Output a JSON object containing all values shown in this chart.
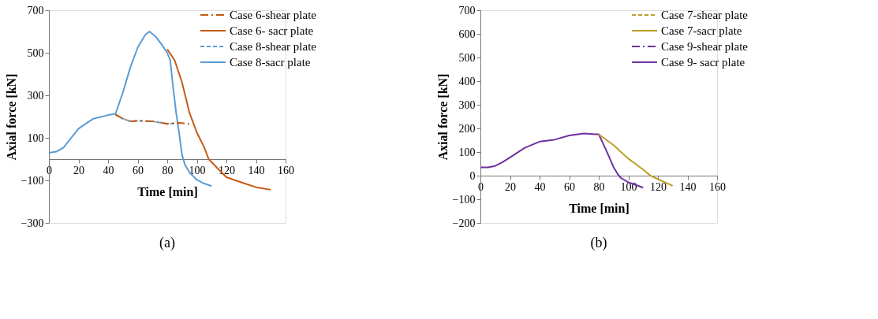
{
  "chart_data": [
    {
      "type": "line",
      "xlabel": "Time [min]",
      "ylabel": "Axial force [kN]",
      "annotations": [
        "(a)"
      ],
      "xlim": [
        0,
        160
      ],
      "xticks": [
        0,
        20,
        40,
        60,
        80,
        100,
        120,
        140,
        160
      ],
      "ylim": [
        -300,
        700
      ],
      "yticks": [
        -300,
        -100,
        100,
        300,
        500,
        700
      ],
      "legend": "top right",
      "grid": false,
      "marker": "none",
      "series": [
        {
          "name": "Case 6-shear plate",
          "color": "#c55a11",
          "line_style": "dashdot",
          "x": [
            45,
            50,
            55,
            60,
            70,
            80,
            88,
            92,
            96
          ],
          "values": [
            210,
            190,
            178,
            180,
            178,
            166,
            170,
            168,
            165
          ]
        },
        {
          "name": "Case 6- sacr plate",
          "color": "#c55a11",
          "line_style": "solid",
          "x": [
            80,
            85,
            90,
            95,
            100,
            105,
            108,
            115,
            120,
            130,
            140,
            150
          ],
          "values": [
            516,
            465,
            360,
            219,
            125,
            55,
            0,
            -50,
            -85,
            -109,
            -132,
            -144
          ]
        },
        {
          "name": "Case 8-shear plate",
          "color": "#5b9bd5",
          "line_style": "dashed",
          "x": [
            45,
            50,
            55,
            60,
            70,
            80,
            88
          ],
          "values": [
            210,
            190,
            178,
            180,
            178,
            166,
            170
          ]
        },
        {
          "name": "Case 8-sacr plate",
          "color": "#5b9bd5",
          "line_style": "solid",
          "x": [
            0,
            5,
            10,
            20,
            30,
            40,
            45,
            50,
            55,
            60,
            65,
            68,
            72,
            76,
            80,
            82,
            84,
            86,
            88,
            90,
            92,
            95,
            100,
            105,
            110
          ],
          "values": [
            30,
            35,
            55,
            143,
            190,
            207,
            213,
            313,
            430,
            524,
            583,
            600,
            577,
            541,
            500,
            465,
            336,
            219,
            125,
            20,
            -27,
            -62,
            -97,
            -115,
            -127
          ]
        }
      ]
    },
    {
      "type": "line",
      "xlabel": "Time [min]",
      "ylabel": "Axial force [kN]",
      "annotations": [
        "(b)"
      ],
      "xlim": [
        0,
        160
      ],
      "xticks": [
        0,
        20,
        40,
        60,
        80,
        100,
        120,
        140,
        160
      ],
      "ylim": [
        -200,
        700
      ],
      "yticks": [
        -200,
        -100,
        0,
        100,
        200,
        300,
        400,
        500,
        600,
        700
      ],
      "legend": "top right",
      "grid": false,
      "marker": "none",
      "series": [
        {
          "name": "Case 7-shear plate",
          "color": "#bf9f2a",
          "line_style": "dashed"
        },
        {
          "name": "Case 7-sacr plate",
          "color": "#bf9f2a",
          "line_style": "solid",
          "x": [
            80,
            90,
            100,
            110,
            115,
            120,
            130
          ],
          "values": [
            175,
            129,
            72,
            26,
            0,
            -15,
            -43
          ]
        },
        {
          "name": "Case 9-shear plate",
          "color": "#7030a0",
          "line_style": "dashdot"
        },
        {
          "name": "Case 9- sacr plate",
          "color": "#7030a0",
          "line_style": "solid",
          "x": [
            0,
            5,
            10,
            15,
            20,
            30,
            40,
            50,
            60,
            70,
            78,
            80,
            85,
            90,
            93,
            95,
            100,
            105,
            110
          ],
          "values": [
            35,
            35,
            41,
            57,
            77,
            118,
            144,
            152,
            170,
            178,
            175,
            175,
            108,
            36,
            5,
            -10,
            -28,
            -39,
            -51
          ]
        }
      ]
    }
  ]
}
